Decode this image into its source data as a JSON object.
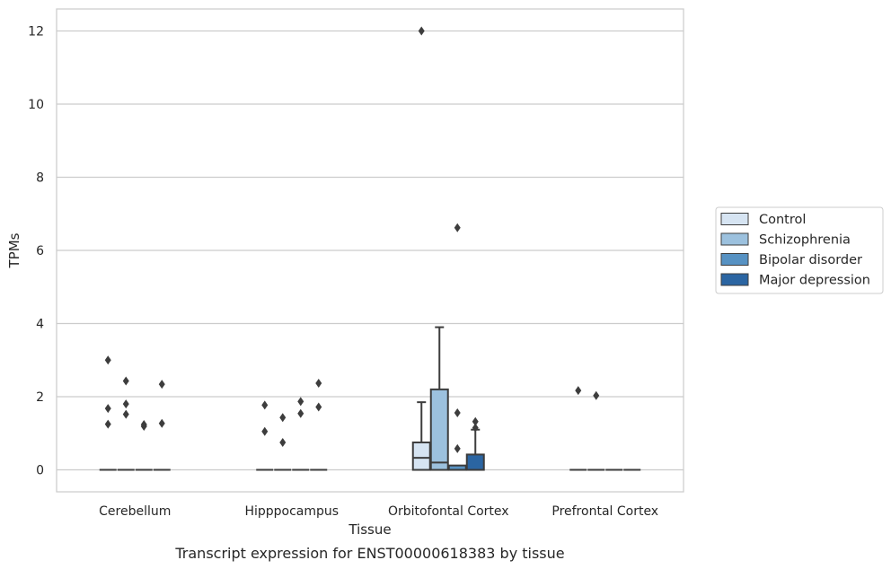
{
  "chart_data": {
    "type": "box",
    "title": "",
    "caption": "Transcript expression for ENST00000618383 by tissue",
    "xlabel": "Tissue",
    "ylabel": "TPMs",
    "ylim": [
      -0.6,
      12.6
    ],
    "yticks": [
      0,
      2,
      4,
      6,
      8,
      10,
      12
    ],
    "ytick_labels": [
      "0",
      "2",
      "4",
      "6",
      "8",
      "10",
      "12"
    ],
    "grid": "horizontal",
    "legend_position": "right",
    "categories": [
      "Cerebellum",
      "Hipppocampus",
      "Orbitofontal Cortex",
      "Prefrontal Cortex"
    ],
    "series": [
      {
        "name": "Control",
        "color": "#d6e4f2",
        "boxes": [
          {
            "q1": 0,
            "median": 0,
            "q3": 0,
            "whislo": 0,
            "whishi": 0,
            "fliers": [
              3.0,
              1.68,
              1.25
            ]
          },
          {
            "q1": 0,
            "median": 0,
            "q3": 0,
            "whislo": 0,
            "whishi": 0,
            "fliers": [
              1.77,
              1.05
            ]
          },
          {
            "q1": 0,
            "median": 0.33,
            "q3": 0.75,
            "whislo": 0,
            "whishi": 1.85,
            "fliers": [
              12.0
            ]
          },
          {
            "q1": 0,
            "median": 0,
            "q3": 0,
            "whislo": 0,
            "whishi": 0,
            "fliers": [
              2.17
            ]
          }
        ]
      },
      {
        "name": "Schizophrenia",
        "color": "#9cc1de",
        "boxes": [
          {
            "q1": 0,
            "median": 0,
            "q3": 0,
            "whislo": 0,
            "whishi": 0,
            "fliers": [
              2.43,
              1.8,
              1.52
            ]
          },
          {
            "q1": 0,
            "median": 0,
            "q3": 0,
            "whislo": 0,
            "whishi": 0,
            "fliers": [
              1.43,
              0.75
            ]
          },
          {
            "q1": 0,
            "median": 0.2,
            "q3": 2.2,
            "whislo": 0,
            "whishi": 3.9,
            "fliers": []
          },
          {
            "q1": 0,
            "median": 0,
            "q3": 0,
            "whislo": 0,
            "whishi": 0,
            "fliers": [
              2.03
            ]
          }
        ]
      },
      {
        "name": "Bipolar disorder",
        "color": "#5792c3",
        "boxes": [
          {
            "q1": 0,
            "median": 0,
            "q3": 0,
            "whislo": 0,
            "whishi": 0,
            "fliers": [
              1.24,
              1.19
            ]
          },
          {
            "q1": 0,
            "median": 0,
            "q3": 0,
            "whislo": 0,
            "whishi": 0,
            "fliers": [
              1.87,
              1.54
            ]
          },
          {
            "q1": 0,
            "median": 0,
            "q3": 0.12,
            "whislo": 0,
            "whishi": 0.12,
            "fliers": [
              6.62,
              1.56,
              0.58
            ]
          },
          {
            "q1": 0,
            "median": 0,
            "q3": 0,
            "whislo": 0,
            "whishi": 0,
            "fliers": []
          }
        ]
      },
      {
        "name": "Major depression",
        "color": "#2b65a2",
        "boxes": [
          {
            "q1": 0,
            "median": 0,
            "q3": 0,
            "whislo": 0,
            "whishi": 0,
            "fliers": [
              2.34,
              1.27
            ]
          },
          {
            "q1": 0,
            "median": 0,
            "q3": 0,
            "whislo": 0,
            "whishi": 0,
            "fliers": [
              2.37,
              1.72
            ]
          },
          {
            "q1": 0,
            "median": 0,
            "q3": 0.42,
            "whislo": 0,
            "whishi": 1.1,
            "fliers": [
              1.32,
              1.15
            ]
          },
          {
            "q1": 0,
            "median": 0,
            "q3": 0,
            "whislo": 0,
            "whishi": 0,
            "fliers": []
          }
        ]
      }
    ]
  }
}
